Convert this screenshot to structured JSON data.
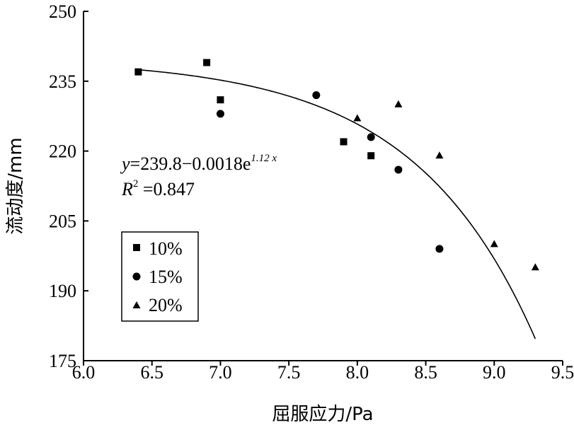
{
  "chart_data": {
    "type": "scatter",
    "xlabel": "屈服应力/Pa",
    "ylabel": "流动度/mm",
    "xlim": [
      6.0,
      9.5
    ],
    "ylim": [
      175,
      250
    ],
    "x_ticks": [
      "6.0",
      "6.5",
      "7.0",
      "7.5",
      "8.0",
      "8.5",
      "9.0",
      "9.5"
    ],
    "y_ticks": [
      "175",
      "190",
      "205",
      "220",
      "235",
      "250"
    ],
    "grid": false,
    "legend_position": "lower-left",
    "series": [
      {
        "name": "10%",
        "marker": "square",
        "points": [
          {
            "x": 6.4,
            "y": 237
          },
          {
            "x": 6.9,
            "y": 239
          },
          {
            "x": 7.0,
            "y": 231
          },
          {
            "x": 7.9,
            "y": 222
          },
          {
            "x": 8.1,
            "y": 219
          }
        ]
      },
      {
        "name": "15%",
        "marker": "circle",
        "points": [
          {
            "x": 7.0,
            "y": 228
          },
          {
            "x": 7.7,
            "y": 232
          },
          {
            "x": 8.1,
            "y": 223
          },
          {
            "x": 8.3,
            "y": 216
          },
          {
            "x": 8.6,
            "y": 199
          }
        ]
      },
      {
        "name": "20%",
        "marker": "triangle",
        "points": [
          {
            "x": 8.0,
            "y": 227
          },
          {
            "x": 8.3,
            "y": 230
          },
          {
            "x": 8.6,
            "y": 219
          },
          {
            "x": 9.0,
            "y": 200
          },
          {
            "x": 9.3,
            "y": 195
          }
        ]
      }
    ],
    "fit": {
      "a": 239.8,
      "b": 0.0018,
      "c": 1.12,
      "x_range": [
        6.4,
        9.3
      ]
    },
    "annotation": {
      "equation_y": "y",
      "equation_main": "=239.8−0.0018e",
      "equation_exp": "1.12 x",
      "r2_symbol": "R",
      "r2_sup": "2",
      "r2_value": " =0.847"
    }
  }
}
